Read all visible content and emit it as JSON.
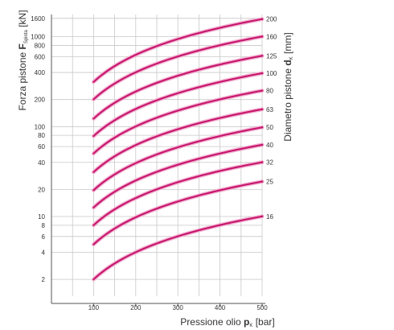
{
  "chart_data": {
    "type": "line",
    "x_label": {
      "main": "Pressione olio ",
      "symbol": "p",
      "sub": "K",
      "unit": " [bar]"
    },
    "y_label": {
      "main": "Forza pistone ",
      "symbol": "F",
      "sub": "Spinta",
      "unit": " [kN]"
    },
    "y2_label": {
      "main": "Diametro pistone ",
      "symbol": "d",
      "sub": "K",
      "unit": " [mm]"
    },
    "x_ticks": [
      "100",
      "200",
      "300",
      "400",
      "500"
    ],
    "y_ticks": [
      "2",
      "4",
      "6",
      "8",
      "10",
      "20",
      "40",
      "60",
      "80",
      "100",
      "200",
      "400",
      "600",
      "800",
      "1000",
      "1600"
    ],
    "x_tick_values": [
      100,
      200,
      300,
      400,
      500
    ],
    "y_tick_values": [
      2,
      4,
      6,
      8,
      10,
      20,
      40,
      60,
      80,
      100,
      200,
      400,
      600,
      800,
      1000,
      1600
    ],
    "xlim": [
      0,
      500
    ],
    "ylim": [
      1.3,
      2000
    ],
    "y_scale": "log",
    "grid": true,
    "line_color": "#c8176f",
    "x": [
      100,
      200,
      300,
      400,
      500
    ],
    "series": [
      {
        "name": "16",
        "values": [
          2.0,
          4.0,
          6.0,
          8.0,
          10.05
        ]
      },
      {
        "name": "25",
        "values": [
          4.9,
          9.8,
          14.7,
          19.6,
          24.5
        ]
      },
      {
        "name": "32",
        "values": [
          8.0,
          16.1,
          24.1,
          32.2,
          40.2
        ]
      },
      {
        "name": "40",
        "values": [
          12.6,
          25.1,
          37.7,
          50.3,
          62.8
        ]
      },
      {
        "name": "50",
        "values": [
          19.6,
          39.3,
          58.9,
          78.5,
          98.2
        ]
      },
      {
        "name": "63",
        "values": [
          31.2,
          62.3,
          93.5,
          124.7,
          155.9
        ]
      },
      {
        "name": "80",
        "values": [
          50.3,
          100.5,
          150.8,
          201.1,
          251.3
        ]
      },
      {
        "name": "100",
        "values": [
          78.5,
          157.1,
          235.6,
          314.2,
          392.7
        ]
      },
      {
        "name": "125",
        "values": [
          122.7,
          245.4,
          368.2,
          490.9,
          613.6
        ]
      },
      {
        "name": "160",
        "values": [
          201.1,
          402.1,
          603.2,
          804.2,
          1005.3
        ]
      },
      {
        "name": "200",
        "values": [
          314.2,
          628.3,
          942.5,
          1256.6,
          1570.8
        ]
      }
    ]
  }
}
